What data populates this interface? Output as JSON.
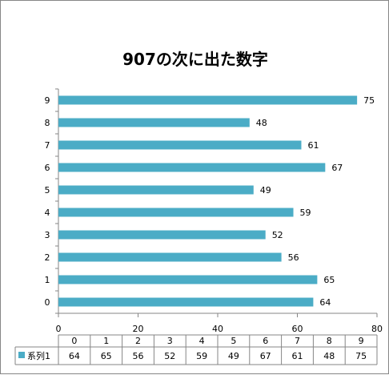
{
  "chart_data": {
    "type": "bar",
    "orientation": "horizontal",
    "title": "907の次に出た数字",
    "categories": [
      "0",
      "1",
      "2",
      "3",
      "4",
      "5",
      "6",
      "7",
      "8",
      "9"
    ],
    "series": [
      {
        "name": "系列1",
        "values": [
          64,
          65,
          56,
          52,
          59,
          49,
          67,
          61,
          48,
          75
        ],
        "color": "#4bacc6"
      }
    ],
    "xlim": [
      0,
      80
    ],
    "x_ticks": [
      0,
      20,
      40,
      60,
      80
    ],
    "data_labels": true,
    "data_table": true,
    "legend": "data-table"
  }
}
